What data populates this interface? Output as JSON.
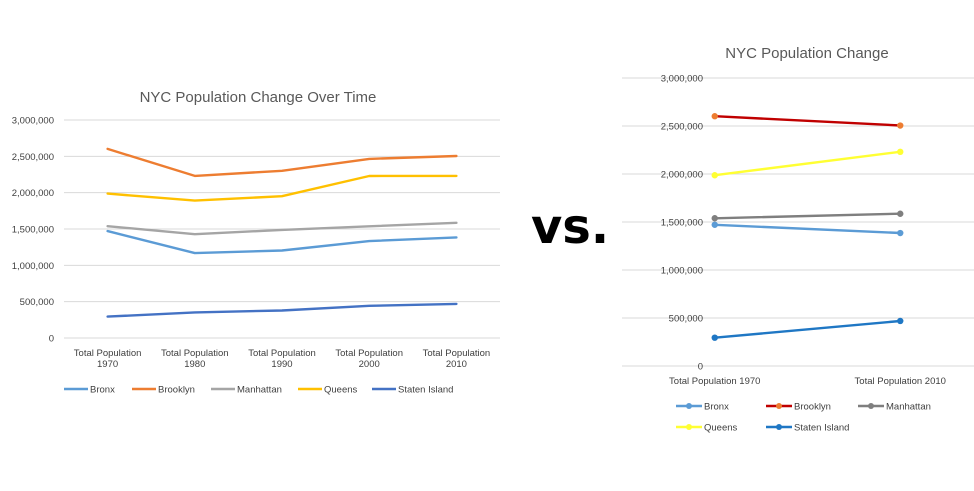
{
  "separator": "vs.",
  "colors": {
    "gridline": "#d9d9d9",
    "text": "#595959"
  },
  "chart_data": [
    {
      "type": "line",
      "title": "NYC Population Change Over Time",
      "categories": [
        [
          "Total Population",
          "1970"
        ],
        [
          "Total Population",
          "1980"
        ],
        [
          "Total Population",
          "1990"
        ],
        [
          "Total Population",
          "2000"
        ],
        [
          "Total Population",
          "2010"
        ]
      ],
      "ylim": [
        0,
        3000000
      ],
      "yticks": [
        0,
        500000,
        1000000,
        1500000,
        2000000,
        2500000,
        3000000
      ],
      "ytick_labels": [
        "0",
        "500,000",
        "1,000,000",
        "1,500,000",
        "2,000,000",
        "2,500,000",
        "3,000,000"
      ],
      "grid": true,
      "markers": false,
      "legend_position": "bottom",
      "series": [
        {
          "name": "Bronx",
          "color": "#5b9bd5",
          "values": [
            1471000,
            1169000,
            1204000,
            1333000,
            1385000
          ]
        },
        {
          "name": "Brooklyn",
          "color": "#ed7d31",
          "values": [
            2602000,
            2231000,
            2301000,
            2465000,
            2505000
          ]
        },
        {
          "name": "Manhattan",
          "color": "#a5a5a5",
          "values": [
            1539000,
            1428000,
            1488000,
            1537000,
            1586000
          ]
        },
        {
          "name": "Queens",
          "color": "#ffc000",
          "values": [
            1987000,
            1891000,
            1952000,
            2229000,
            2231000
          ]
        },
        {
          "name": "Staten Island",
          "color": "#4472c4",
          "values": [
            295000,
            352000,
            379000,
            443000,
            469000
          ]
        }
      ]
    },
    {
      "type": "line",
      "title": "NYC Population Change",
      "categories": [
        [
          "Total Population 1970"
        ],
        [
          "Total Population 2010"
        ]
      ],
      "ylim": [
        0,
        3000000
      ],
      "yticks": [
        0,
        500000,
        1000000,
        1500000,
        2000000,
        2500000,
        3000000
      ],
      "ytick_labels": [
        "0",
        "500,000",
        "1,000,000",
        "1,500,000",
        "2,000,000",
        "2,500,000",
        "3,000,000"
      ],
      "grid": true,
      "markers": true,
      "legend_position": "bottom",
      "series": [
        {
          "name": "Bronx",
          "color": "#5b9bd5",
          "values": [
            1471000,
            1385000
          ]
        },
        {
          "name": "Brooklyn",
          "color": "#c00000",
          "marker_color": "#ed7d31",
          "values": [
            2602000,
            2505000
          ]
        },
        {
          "name": "Manhattan",
          "color": "#7f7f7f",
          "values": [
            1539000,
            1586000
          ]
        },
        {
          "name": "Queens",
          "color": "#ffff33",
          "values": [
            1987000,
            2231000
          ]
        },
        {
          "name": "Staten Island",
          "color": "#1f77c4",
          "values": [
            295000,
            469000
          ]
        }
      ]
    }
  ]
}
